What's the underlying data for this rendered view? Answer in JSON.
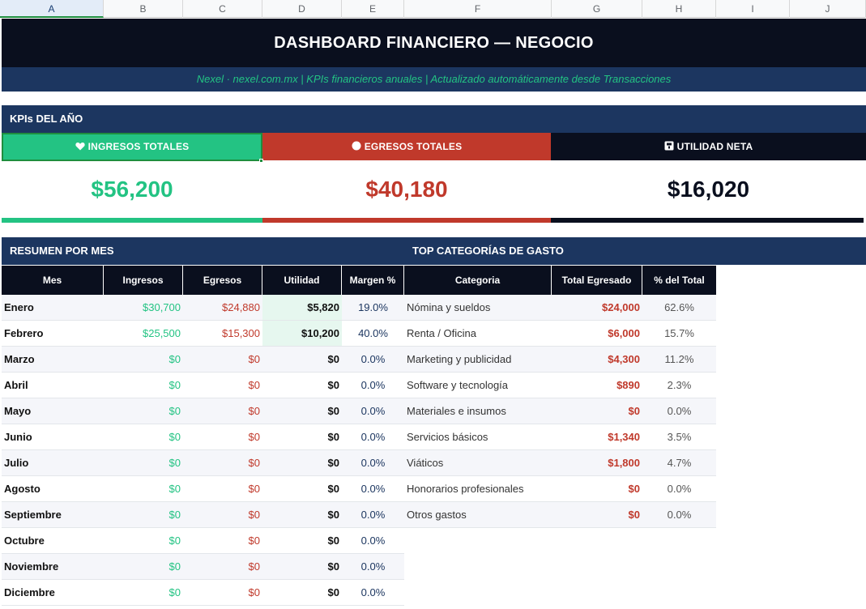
{
  "sheet": {
    "columns": [
      "A",
      "B",
      "C",
      "D",
      "E",
      "F",
      "G",
      "H",
      "I",
      "J"
    ]
  },
  "header": {
    "title": "DASHBOARD FINANCIERO — NEGOCIO",
    "subtitle": "Nexel  ·  nexel.com.mx  |  KPIs financieros anuales  |  Actualizado automáticamente desde Transacciones"
  },
  "kpis": {
    "section_label": "KPIs DEL AÑO",
    "cards": [
      {
        "label": "INGRESOS TOTALES",
        "value": "$56,200",
        "icon": "heart-icon",
        "color": "#23c383"
      },
      {
        "label": "EGRESOS TOTALES",
        "value": "$40,180",
        "icon": "circle-icon",
        "color": "#c0392b"
      },
      {
        "label": "UTILIDAD NETA",
        "value": "$16,020",
        "icon": "box-icon",
        "color": "#0a0f1e"
      }
    ]
  },
  "resumen": {
    "section_label": "RESUMEN POR MES",
    "headers": [
      "Mes",
      "Ingresos",
      "Egresos",
      "Utilidad",
      "Margen %"
    ],
    "rows": [
      {
        "mes": "Enero",
        "ingresos": "$30,700",
        "egresos": "$24,880",
        "utilidad": "$5,820",
        "margen": "19.0%"
      },
      {
        "mes": "Febrero",
        "ingresos": "$25,500",
        "egresos": "$15,300",
        "utilidad": "$10,200",
        "margen": "40.0%"
      },
      {
        "mes": "Marzo",
        "ingresos": "$0",
        "egresos": "$0",
        "utilidad": "$0",
        "margen": "0.0%"
      },
      {
        "mes": "Abril",
        "ingresos": "$0",
        "egresos": "$0",
        "utilidad": "$0",
        "margen": "0.0%"
      },
      {
        "mes": "Mayo",
        "ingresos": "$0",
        "egresos": "$0",
        "utilidad": "$0",
        "margen": "0.0%"
      },
      {
        "mes": "Junio",
        "ingresos": "$0",
        "egresos": "$0",
        "utilidad": "$0",
        "margen": "0.0%"
      },
      {
        "mes": "Julio",
        "ingresos": "$0",
        "egresos": "$0",
        "utilidad": "$0",
        "margen": "0.0%"
      },
      {
        "mes": "Agosto",
        "ingresos": "$0",
        "egresos": "$0",
        "utilidad": "$0",
        "margen": "0.0%"
      },
      {
        "mes": "Septiembre",
        "ingresos": "$0",
        "egresos": "$0",
        "utilidad": "$0",
        "margen": "0.0%"
      },
      {
        "mes": "Octubre",
        "ingresos": "$0",
        "egresos": "$0",
        "utilidad": "$0",
        "margen": "0.0%"
      },
      {
        "mes": "Noviembre",
        "ingresos": "$0",
        "egresos": "$0",
        "utilidad": "$0",
        "margen": "0.0%"
      },
      {
        "mes": "Diciembre",
        "ingresos": "$0",
        "egresos": "$0",
        "utilidad": "$0",
        "margen": "0.0%"
      }
    ]
  },
  "categorias": {
    "section_label": "TOP CATEGORÍAS DE GASTO",
    "headers": [
      "Categoria",
      "Total Egresado",
      "% del Total"
    ],
    "rows": [
      {
        "categoria": "Nómina y sueldos",
        "total": "$24,000",
        "pct": "62.6%"
      },
      {
        "categoria": "Renta / Oficina",
        "total": "$6,000",
        "pct": "15.7%"
      },
      {
        "categoria": "Marketing y publicidad",
        "total": "$4,300",
        "pct": "11.2%"
      },
      {
        "categoria": "Software y tecnología",
        "total": "$890",
        "pct": "2.3%"
      },
      {
        "categoria": "Materiales e insumos",
        "total": "$0",
        "pct": "0.0%"
      },
      {
        "categoria": "Servicios básicos",
        "total": "$1,340",
        "pct": "3.5%"
      },
      {
        "categoria": "Viáticos",
        "total": "$1,800",
        "pct": "4.7%"
      },
      {
        "categoria": "Honorarios profesionales",
        "total": "$0",
        "pct": "0.0%"
      },
      {
        "categoria": "Otros gastos",
        "total": "$0",
        "pct": "0.0%"
      }
    ]
  }
}
